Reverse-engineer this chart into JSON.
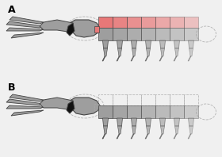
{
  "background_color": "#f0f0f0",
  "label_A": "A",
  "label_B": "B",
  "gray": "#9e9e9e",
  "gray_light": "#b8b8b8",
  "gray_dark": "#606060",
  "black": "#111111",
  "red": "#e87878",
  "red_fade": "#f0b0b0",
  "outline": "#444444",
  "dash_color": "#aaaaaa",
  "fig_width": 2.8,
  "fig_height": 1.98,
  "dpi": 100
}
